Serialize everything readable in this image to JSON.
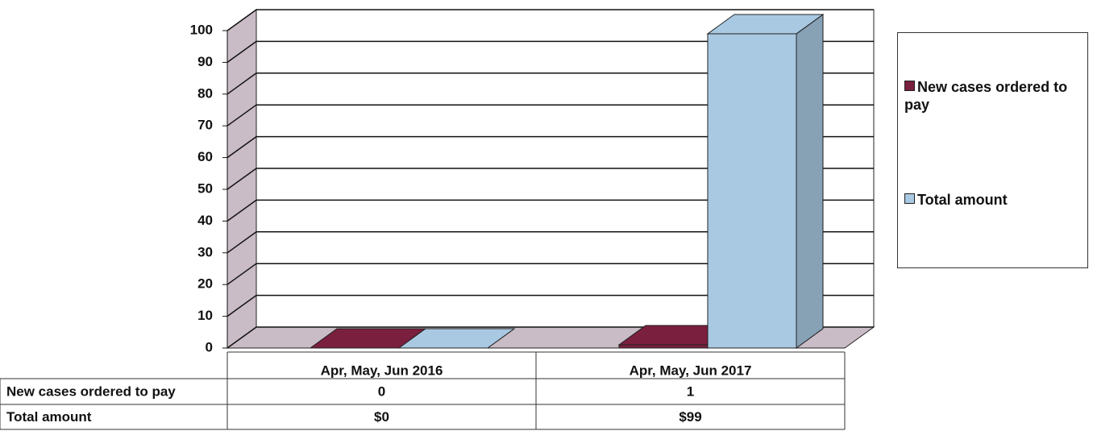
{
  "chart_data": {
    "type": "bar3d",
    "categories": [
      "Apr, May, Jun 2016",
      "Apr, May, Jun 2017"
    ],
    "series": [
      {
        "name": "New cases ordered to pay",
        "color": "#7a1f3d",
        "values": [
          0,
          1
        ]
      },
      {
        "name": "Total amount",
        "color": "#a9c9e2",
        "values": [
          0,
          99
        ],
        "value_labels": [
          "$0",
          "$99"
        ]
      }
    ],
    "ylim": [
      0,
      100
    ],
    "yticks": [
      0,
      10,
      20,
      30,
      40,
      50,
      60,
      70,
      80,
      90,
      100
    ],
    "grid": true,
    "legend": "right"
  }
}
